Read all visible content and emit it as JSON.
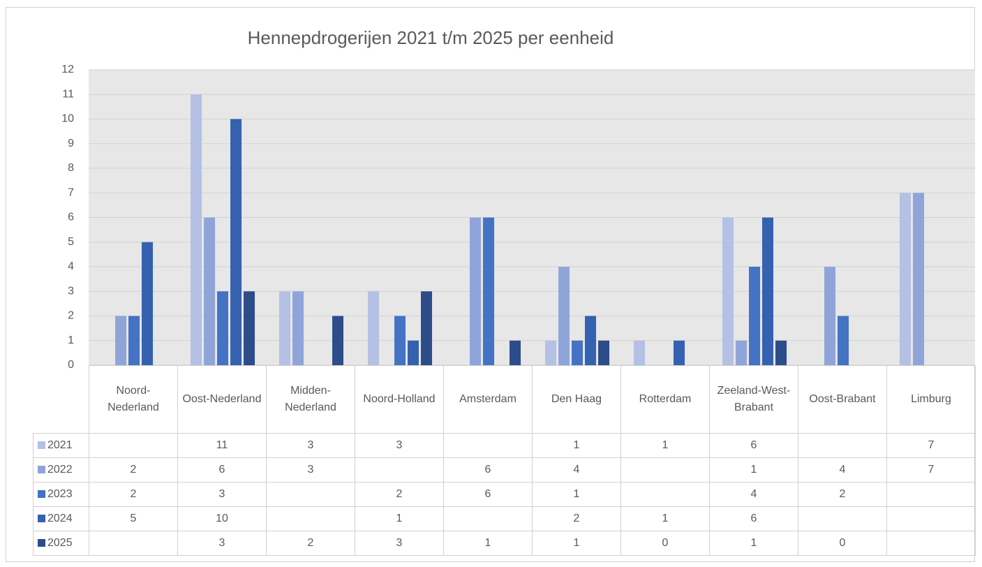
{
  "chart_data": {
    "type": "bar",
    "title": "Hennepdrogerijen 2021 t/m 2025 per eenheid",
    "categories": [
      "Noord-Nederland",
      "Oost-Nederland",
      "Midden-Nederland",
      "Noord-Holland",
      "Amsterdam",
      "Den Haag",
      "Rotterdam",
      "Zeeland-West-Brabant",
      "Oost-Brabant",
      "Limburg"
    ],
    "series": [
      {
        "name": "2021",
        "color": "#b4c0e4",
        "values": [
          null,
          11,
          3,
          3,
          null,
          1,
          1,
          6,
          null,
          7
        ]
      },
      {
        "name": "2022",
        "color": "#8fa5d9",
        "values": [
          2,
          6,
          3,
          null,
          6,
          4,
          null,
          1,
          4,
          7
        ]
      },
      {
        "name": "2023",
        "color": "#4472c4",
        "values": [
          2,
          3,
          null,
          2,
          6,
          1,
          null,
          4,
          2,
          null
        ]
      },
      {
        "name": "2024",
        "color": "#3461b0",
        "values": [
          5,
          10,
          null,
          1,
          null,
          2,
          1,
          6,
          null,
          null
        ]
      },
      {
        "name": "2025",
        "color": "#2c4c8a",
        "values": [
          null,
          3,
          2,
          3,
          1,
          1,
          0,
          1,
          0,
          null
        ]
      }
    ],
    "ylim": [
      0,
      12
    ],
    "yticks": [
      0,
      1,
      2,
      3,
      4,
      5,
      6,
      7,
      8,
      9,
      10,
      11,
      12
    ],
    "grid": true,
    "data_table": true
  }
}
